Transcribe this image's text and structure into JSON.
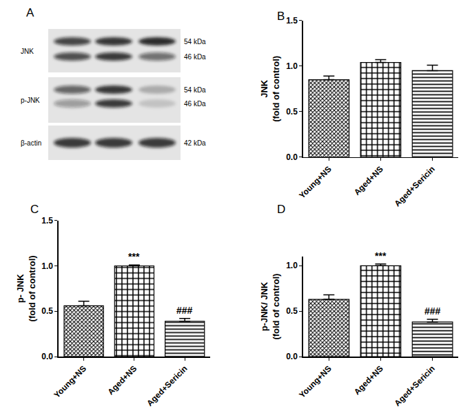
{
  "blot": {
    "panel": "A",
    "rows": [
      {
        "label": "JNK",
        "sizes": [
          "54 kDa",
          "46 kDa"
        ]
      },
      {
        "label": "p-JNK",
        "sizes": [
          "54 kDa",
          "46 kDa"
        ]
      },
      {
        "label": "β-actin",
        "sizes": [
          "42 kDa"
        ]
      }
    ]
  },
  "chart_data": [
    {
      "panel": "B",
      "type": "bar",
      "categories": [
        "Young+NS",
        "Aged+NS",
        "Aged+Sericin"
      ],
      "values": [
        0.85,
        1.04,
        0.95
      ],
      "errors": [
        0.04,
        0.03,
        0.06
      ],
      "y_label": "JNK\n(fold of control)",
      "ylim": [
        0,
        1.5
      ],
      "yticks": [
        {
          "value": 0,
          "label": "0.0"
        },
        {
          "value": 0.5,
          "label": "0.5"
        },
        {
          "value": 1,
          "label": "1.0"
        },
        {
          "value": 1.5,
          "label": "1.5"
        }
      ],
      "color": "#000000",
      "grid": false
    },
    {
      "panel": "C",
      "type": "bar",
      "categories": [
        "Young+NS",
        "Aged+NS",
        "Aged+Sericin"
      ],
      "values": [
        0.56,
        1.0,
        0.39
      ],
      "errors": [
        0.05,
        0.01,
        0.03
      ],
      "y_label": "p- JNK\n(fold of control)",
      "ylim": [
        0,
        1.5
      ],
      "yticks": [
        {
          "value": 0,
          "label": "0.0"
        },
        {
          "value": 0.5,
          "label": "0.5"
        },
        {
          "value": 1,
          "label": "1.0"
        },
        {
          "value": 1.5,
          "label": "1.5"
        }
      ],
      "annotations": [
        {
          "text": "***",
          "category": "Aged+NS"
        },
        {
          "text": "###",
          "category": "Aged+Sericin"
        }
      ],
      "color": "#000000",
      "grid": false
    },
    {
      "panel": "D",
      "type": "bar",
      "categories": [
        "Young+NS",
        "Aged+NS",
        "Aged+Sericin"
      ],
      "values": [
        0.63,
        1.0,
        0.38
      ],
      "errors": [
        0.05,
        0.02,
        0.03
      ],
      "y_label": "p-JNK/ JNK\n(fold of control)",
      "ylim": [
        0,
        1.1
      ],
      "yticks": [
        {
          "value": 0,
          "label": "0.0"
        },
        {
          "value": 0.5,
          "label": "0.5"
        },
        {
          "value": 1,
          "label": "1.0"
        }
      ],
      "annotations": [
        {
          "text": "***",
          "category": "Aged+NS"
        },
        {
          "text": "###",
          "category": "Aged+Sericin"
        }
      ],
      "color": "#000000",
      "grid": false
    }
  ]
}
